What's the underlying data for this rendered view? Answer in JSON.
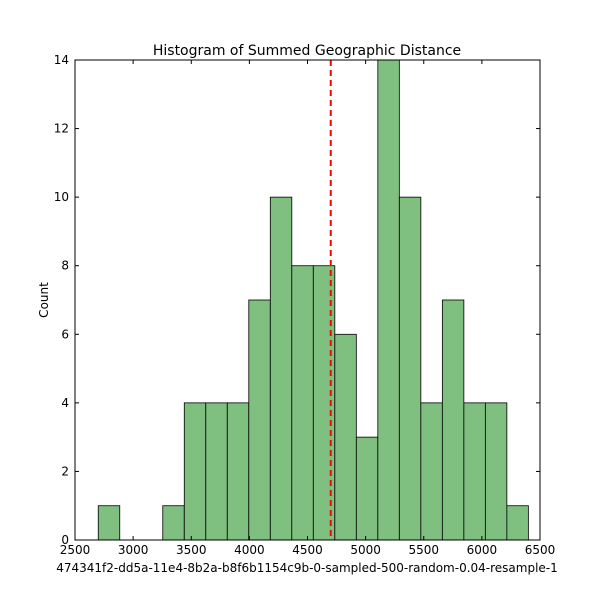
{
  "chart_data": {
    "type": "bar",
    "title": "Histogram of Summed Geographic Distance",
    "xlabel": "474341f2-dd5a-11e4-8b2a-b8f6b1154c9b-0-sampled-500-random-0.04-resample-1",
    "ylabel": "Count",
    "xlim": [
      2500,
      6500
    ],
    "ylim": [
      0,
      14
    ],
    "x_ticks": [
      2500,
      3000,
      3500,
      4000,
      4500,
      5000,
      5500,
      6000,
      6500
    ],
    "y_ticks": [
      0,
      2,
      4,
      6,
      8,
      10,
      12,
      14
    ],
    "bins": [
      {
        "start": 2700,
        "end": 2885,
        "count": 1
      },
      {
        "start": 2885,
        "end": 3070,
        "count": 0
      },
      {
        "start": 3070,
        "end": 3255,
        "count": 0
      },
      {
        "start": 3255,
        "end": 3440,
        "count": 1
      },
      {
        "start": 3440,
        "end": 3625,
        "count": 4
      },
      {
        "start": 3625,
        "end": 3810,
        "count": 4
      },
      {
        "start": 3810,
        "end": 3995,
        "count": 4
      },
      {
        "start": 3995,
        "end": 4180,
        "count": 7
      },
      {
        "start": 4180,
        "end": 4365,
        "count": 10
      },
      {
        "start": 4365,
        "end": 4550,
        "count": 8
      },
      {
        "start": 4550,
        "end": 4735,
        "count": 8
      },
      {
        "start": 4735,
        "end": 4920,
        "count": 6
      },
      {
        "start": 4920,
        "end": 5105,
        "count": 3
      },
      {
        "start": 5105,
        "end": 5290,
        "count": 14
      },
      {
        "start": 5290,
        "end": 5475,
        "count": 10
      },
      {
        "start": 5475,
        "end": 5660,
        "count": 4
      },
      {
        "start": 5660,
        "end": 5845,
        "count": 7
      },
      {
        "start": 5845,
        "end": 6030,
        "count": 4
      },
      {
        "start": 6030,
        "end": 6215,
        "count": 4
      },
      {
        "start": 6215,
        "end": 6400,
        "count": 1
      }
    ],
    "reference_line": {
      "x": 4700,
      "color": "#ff0000",
      "style": "dashed"
    },
    "bar_color": "#7fbf7f",
    "bar_edge_color": "#000000",
    "grid": false
  }
}
